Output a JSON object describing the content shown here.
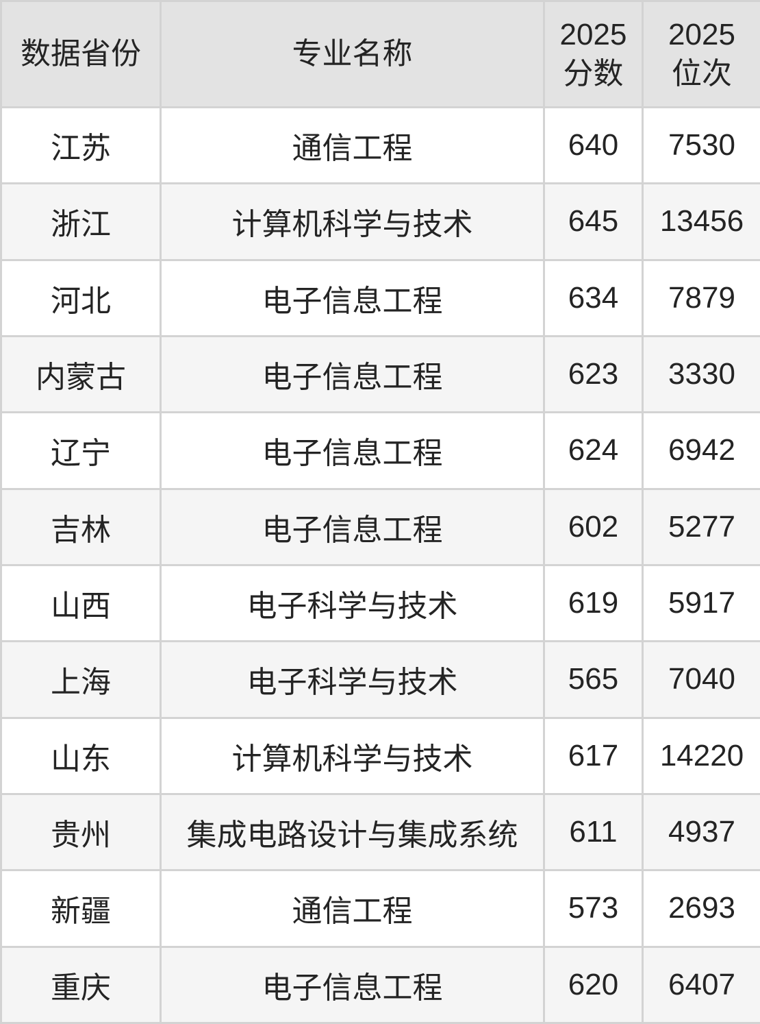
{
  "colors": {
    "header_bg": "#e3e3e3",
    "row_bg": "#ffffff",
    "row_alt_bg": "#f5f5f5",
    "border": "#d3d3d3",
    "text": "#242424"
  },
  "table": {
    "header": {
      "col1": "数据省份",
      "col2": "专业名称",
      "col3_line1": "2025",
      "col3_line2": "分数",
      "col4_line1": "2025",
      "col4_line2": "位次"
    },
    "rows": [
      {
        "province": "江苏",
        "major": "通信工程",
        "score": "640",
        "rank": "7530"
      },
      {
        "province": "浙江",
        "major": "计算机科学与技术",
        "score": "645",
        "rank": "13456"
      },
      {
        "province": "河北",
        "major": "电子信息工程",
        "score": "634",
        "rank": "7879"
      },
      {
        "province": "内蒙古",
        "major": "电子信息工程",
        "score": "623",
        "rank": "3330"
      },
      {
        "province": "辽宁",
        "major": "电子信息工程",
        "score": "624",
        "rank": "6942"
      },
      {
        "province": "吉林",
        "major": "电子信息工程",
        "score": "602",
        "rank": "5277"
      },
      {
        "province": "山西",
        "major": "电子科学与技术",
        "score": "619",
        "rank": "5917"
      },
      {
        "province": "上海",
        "major": "电子科学与技术",
        "score": "565",
        "rank": "7040"
      },
      {
        "province": "山东",
        "major": "计算机科学与技术",
        "score": "617",
        "rank": "14220"
      },
      {
        "province": "贵州",
        "major": "集成电路设计与集成系统",
        "score": "611",
        "rank": "4937"
      },
      {
        "province": "新疆",
        "major": "通信工程",
        "score": "573",
        "rank": "2693"
      },
      {
        "province": "重庆",
        "major": "电子信息工程",
        "score": "620",
        "rank": "6407"
      }
    ]
  },
  "chart_data": {
    "type": "table",
    "title": "",
    "columns": [
      "数据省份",
      "专业名称",
      "2025分数",
      "2025位次"
    ],
    "rows": [
      [
        "江苏",
        "通信工程",
        640,
        7530
      ],
      [
        "浙江",
        "计算机科学与技术",
        645,
        13456
      ],
      [
        "河北",
        "电子信息工程",
        634,
        7879
      ],
      [
        "内蒙古",
        "电子信息工程",
        623,
        3330
      ],
      [
        "辽宁",
        "电子信息工程",
        624,
        6942
      ],
      [
        "吉林",
        "电子信息工程",
        602,
        5277
      ],
      [
        "山西",
        "电子科学与技术",
        619,
        5917
      ],
      [
        "上海",
        "电子科学与技术",
        565,
        7040
      ],
      [
        "山东",
        "计算机科学与技术",
        617,
        14220
      ],
      [
        "贵州",
        "集成电路设计与集成系统",
        611,
        4937
      ],
      [
        "新疆",
        "通信工程",
        573,
        2693
      ],
      [
        "重庆",
        "电子信息工程",
        620,
        6407
      ]
    ]
  }
}
